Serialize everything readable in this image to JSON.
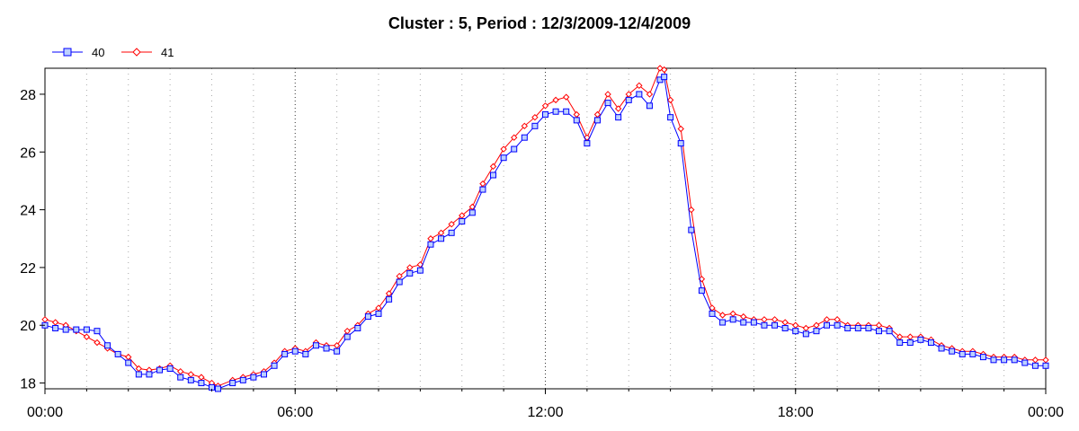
{
  "chart_data": {
    "type": "line",
    "title": "Cluster : 5, Period : 12/3/2009-12/4/2009",
    "xlabel": "",
    "ylabel": "",
    "x_ticks": [
      "00:00",
      "06:00",
      "12:00",
      "18:00",
      "00:00"
    ],
    "xlim_hours": [
      0,
      24
    ],
    "y_ticks": [
      "18",
      "20",
      "22",
      "24",
      "26",
      "28"
    ],
    "ylim": [
      17.8,
      28.9
    ],
    "grid": "dotted vertical lines",
    "legend_position": "top-left",
    "series": [
      {
        "name": "40",
        "color": "#0000ff",
        "marker": "square",
        "x": [
          0.0,
          0.25,
          0.5,
          0.75,
          1.0,
          1.25,
          1.5,
          1.75,
          2.0,
          2.25,
          2.5,
          2.75,
          3.0,
          3.25,
          3.5,
          3.75,
          4.0,
          4.15,
          4.5,
          4.75,
          5.0,
          5.25,
          5.5,
          5.75,
          6.0,
          6.25,
          6.5,
          6.75,
          7.0,
          7.25,
          7.5,
          7.75,
          8.0,
          8.25,
          8.5,
          8.75,
          9.0,
          9.25,
          9.5,
          9.75,
          10.0,
          10.25,
          10.5,
          10.75,
          11.0,
          11.25,
          11.5,
          11.75,
          12.0,
          12.25,
          12.5,
          12.75,
          13.0,
          13.25,
          13.5,
          13.75,
          14.0,
          14.25,
          14.5,
          14.75,
          14.85,
          15.0,
          15.25,
          15.5,
          15.75,
          16.0,
          16.25,
          16.5,
          16.75,
          17.0,
          17.25,
          17.5,
          17.75,
          18.0,
          18.25,
          18.5,
          18.75,
          19.0,
          19.25,
          19.5,
          19.75,
          20.0,
          20.25,
          20.5,
          20.75,
          21.0,
          21.25,
          21.5,
          21.75,
          22.0,
          22.25,
          22.5,
          22.75,
          23.0,
          23.25,
          23.5,
          23.75,
          24.0
        ],
        "values": [
          20.0,
          19.9,
          19.85,
          19.85,
          19.85,
          19.8,
          19.3,
          19.0,
          18.7,
          18.3,
          18.3,
          18.45,
          18.5,
          18.2,
          18.1,
          18.0,
          17.85,
          17.8,
          18.0,
          18.1,
          18.2,
          18.3,
          18.6,
          19.0,
          19.1,
          19.0,
          19.3,
          19.2,
          19.1,
          19.6,
          19.9,
          20.3,
          20.4,
          20.9,
          21.5,
          21.8,
          21.9,
          22.8,
          23.0,
          23.2,
          23.6,
          23.9,
          24.7,
          25.2,
          25.8,
          26.1,
          26.5,
          26.9,
          27.3,
          27.4,
          27.4,
          27.1,
          26.3,
          27.1,
          27.7,
          27.2,
          27.8,
          28.0,
          27.6,
          28.5,
          28.6,
          27.2,
          26.3,
          23.3,
          21.2,
          20.4,
          20.1,
          20.2,
          20.1,
          20.1,
          20.0,
          20.0,
          19.9,
          19.8,
          19.7,
          19.8,
          20.0,
          20.0,
          19.9,
          19.9,
          19.9,
          19.8,
          19.8,
          19.4,
          19.4,
          19.5,
          19.4,
          19.2,
          19.1,
          19.0,
          19.0,
          18.9,
          18.8,
          18.8,
          18.8,
          18.7,
          18.6,
          18.6
        ]
      },
      {
        "name": "41",
        "color": "#ff0000",
        "marker": "diamond",
        "x": [
          0.0,
          0.25,
          0.5,
          0.75,
          1.0,
          1.25,
          1.5,
          1.75,
          2.0,
          2.25,
          2.5,
          2.75,
          3.0,
          3.25,
          3.5,
          3.75,
          4.0,
          4.15,
          4.5,
          4.75,
          5.0,
          5.25,
          5.5,
          5.75,
          6.0,
          6.25,
          6.5,
          6.75,
          7.0,
          7.25,
          7.5,
          7.75,
          8.0,
          8.25,
          8.5,
          8.75,
          9.0,
          9.25,
          9.5,
          9.75,
          10.0,
          10.25,
          10.5,
          10.75,
          11.0,
          11.25,
          11.5,
          11.75,
          12.0,
          12.25,
          12.5,
          12.75,
          13.0,
          13.25,
          13.5,
          13.75,
          14.0,
          14.25,
          14.5,
          14.75,
          14.85,
          15.0,
          15.25,
          15.5,
          15.75,
          16.0,
          16.25,
          16.5,
          16.75,
          17.0,
          17.25,
          17.5,
          17.75,
          18.0,
          18.25,
          18.5,
          18.75,
          19.0,
          19.25,
          19.5,
          19.75,
          20.0,
          20.25,
          20.5,
          20.75,
          21.0,
          21.25,
          21.5,
          21.75,
          22.0,
          22.25,
          22.5,
          22.75,
          23.0,
          23.25,
          23.5,
          23.75,
          24.0
        ],
        "values": [
          20.2,
          20.1,
          20.0,
          19.8,
          19.6,
          19.4,
          19.2,
          19.0,
          18.9,
          18.5,
          18.45,
          18.5,
          18.6,
          18.4,
          18.3,
          18.2,
          18.0,
          17.9,
          18.1,
          18.2,
          18.3,
          18.4,
          18.7,
          19.1,
          19.2,
          19.1,
          19.4,
          19.3,
          19.3,
          19.8,
          20.0,
          20.4,
          20.6,
          21.1,
          21.7,
          22.0,
          22.1,
          23.0,
          23.2,
          23.5,
          23.8,
          24.1,
          24.9,
          25.5,
          26.1,
          26.5,
          26.9,
          27.2,
          27.6,
          27.8,
          27.9,
          27.3,
          26.5,
          27.3,
          28.0,
          27.5,
          28.0,
          28.3,
          28.0,
          28.9,
          28.85,
          27.8,
          26.8,
          24.0,
          21.6,
          20.6,
          20.35,
          20.4,
          20.3,
          20.2,
          20.2,
          20.2,
          20.1,
          20.0,
          19.9,
          20.0,
          20.2,
          20.2,
          20.0,
          20.0,
          20.0,
          20.0,
          19.9,
          19.6,
          19.6,
          19.6,
          19.5,
          19.3,
          19.2,
          19.1,
          19.1,
          19.0,
          18.9,
          18.9,
          18.9,
          18.8,
          18.8,
          18.8
        ]
      }
    ]
  }
}
